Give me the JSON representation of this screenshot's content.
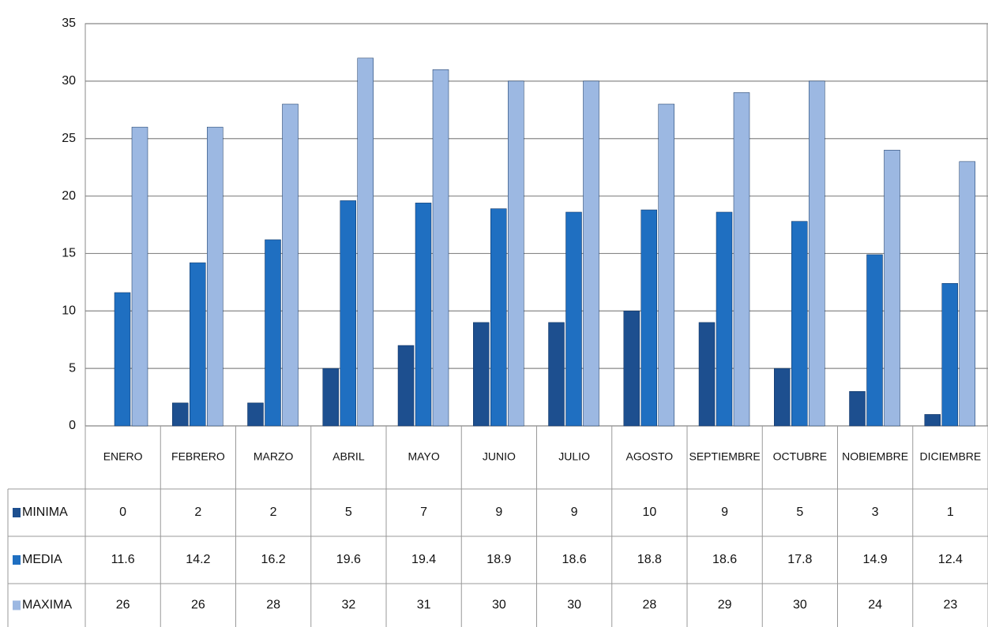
{
  "chart_data": {
    "type": "bar",
    "categories": [
      "ENERO",
      "FEBRERO",
      "MARZO",
      "ABRIL",
      "MAYO",
      "JUNIO",
      "JULIO",
      "AGOSTO",
      "SEPTIEMBRE",
      "OCTUBRE",
      "NOBIEMBRE",
      "DICIEMBRE"
    ],
    "series": [
      {
        "name": "MINIMA",
        "color": "#1d4f8f",
        "values": [
          0,
          2,
          2,
          5,
          7,
          9,
          9,
          10,
          9,
          5,
          3,
          1
        ]
      },
      {
        "name": "MEDIA",
        "color": "#1f6fc1",
        "values": [
          11.6,
          14.2,
          16.2,
          19.6,
          19.4,
          18.9,
          18.6,
          18.8,
          18.6,
          17.8,
          14.9,
          12.4
        ]
      },
      {
        "name": "MAXIMA",
        "color": "#9cb8e2",
        "values": [
          26,
          26,
          28,
          32,
          31,
          30,
          30,
          28,
          29,
          30,
          24,
          23
        ]
      }
    ],
    "ylim": [
      0,
      35
    ],
    "yticks": [
      0,
      5,
      10,
      15,
      20,
      25,
      30,
      35
    ],
    "grid": true
  }
}
